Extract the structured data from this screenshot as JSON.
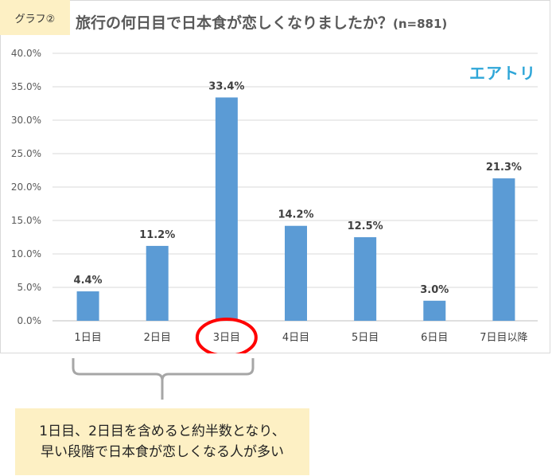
{
  "tag": "グラフ②",
  "title": "旅行の何日目で日本食が恋しくなりましたか？",
  "title_suffix": "(n=881)",
  "brand": "エアトリ",
  "note_lines": [
    "1日目、2日目を含めると約半数となり、",
    "早い段階で日本食が恋しくなる人が多い"
  ],
  "colors": {
    "bar": "#5b9bd5",
    "highlight": "#ff0000",
    "tag_bg": "#fdf0c4",
    "brand": "#2ea6d8"
  },
  "chart_data": {
    "type": "bar",
    "categories": [
      "1日目",
      "2日目",
      "3日目",
      "4日目",
      "5日目",
      "6日目",
      "7日目以降"
    ],
    "values": [
      4.4,
      11.2,
      33.4,
      14.2,
      12.5,
      3.0,
      21.3
    ],
    "value_labels": [
      "4.4%",
      "11.2%",
      "33.4%",
      "14.2%",
      "12.5%",
      "3.0%",
      "21.3%"
    ],
    "yticks": [
      "0.0%",
      "5.0%",
      "10.0%",
      "15.0%",
      "20.0%",
      "25.0%",
      "30.0%",
      "35.0%",
      "40.0%"
    ],
    "ylim": [
      0,
      40
    ],
    "grid": true,
    "highlighted_category": "3日目"
  }
}
